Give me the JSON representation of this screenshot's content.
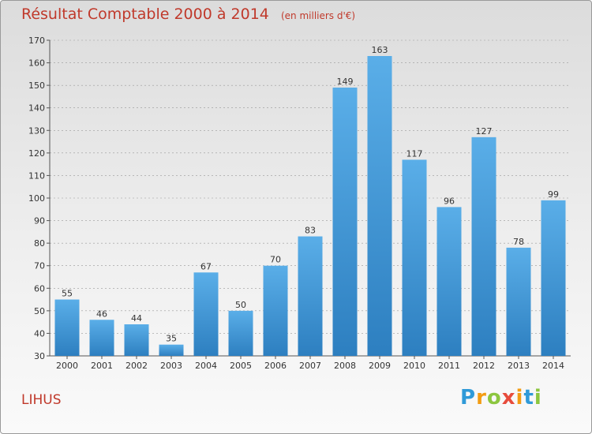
{
  "title": "Résultat Comptable 2000 à 2014",
  "unit": "(en milliers d'€)",
  "commune": "LIHUS",
  "logo": {
    "letters": [
      "P",
      "r",
      "o",
      "x",
      "i",
      "t",
      "i"
    ],
    "colors": [
      "#2f9ad8",
      "#f39c12",
      "#8cc63f",
      "#e74c3c",
      "#f39c12",
      "#2f9ad8",
      "#8cc63f"
    ]
  },
  "colors": {
    "title": "#c0392b",
    "bar_light": "#5aaee8",
    "bar_dark": "#2d7fc0",
    "grid": "#999999"
  },
  "chart_data": {
    "type": "bar",
    "title": "Résultat Comptable 2000 à 2014",
    "xlabel": "",
    "ylabel": "",
    "ylim": [
      30,
      170
    ],
    "yticks": [
      30,
      40,
      50,
      60,
      70,
      80,
      90,
      100,
      110,
      120,
      130,
      140,
      150,
      160,
      170
    ],
    "grid": "horizontal dashed",
    "categories": [
      "2000",
      "2001",
      "2002",
      "2003",
      "2004",
      "2005",
      "2006",
      "2007",
      "2008",
      "2009",
      "2010",
      "2011",
      "2012",
      "2013",
      "2014"
    ],
    "values": [
      55,
      46,
      44,
      35,
      67,
      50,
      70,
      83,
      149,
      163,
      117,
      96,
      127,
      78,
      99
    ]
  }
}
